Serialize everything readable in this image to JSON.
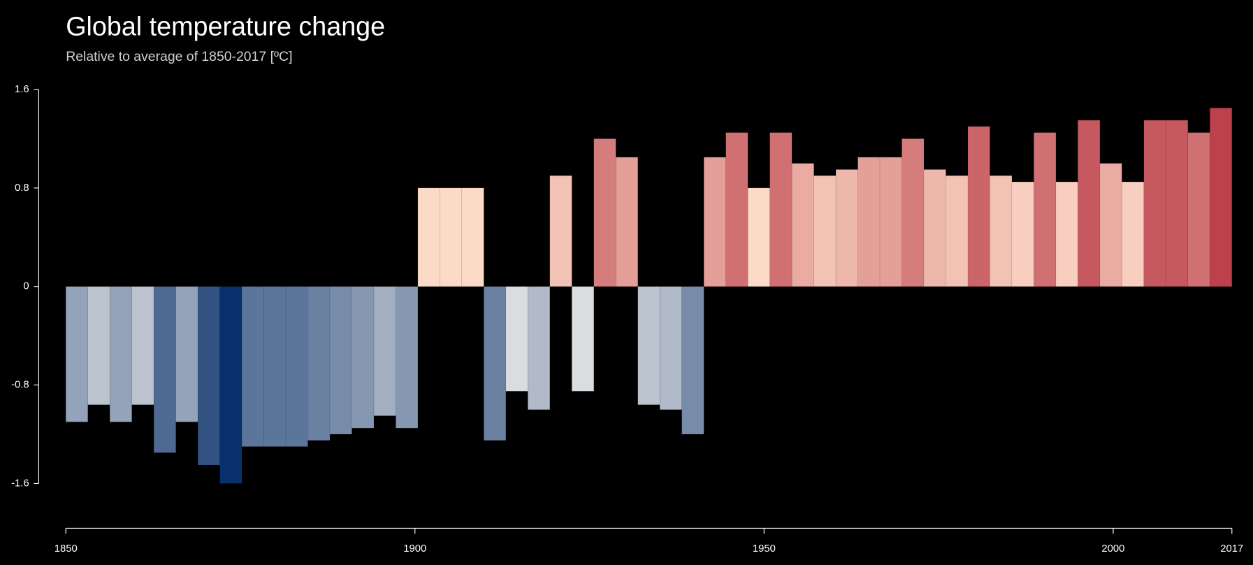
{
  "chart_data": {
    "type": "bar",
    "title": "Global temperature change",
    "subtitle": "Relative to average of 1850-2017 [ºC]",
    "values": [
      -1.1,
      -0.96,
      -1.1,
      -0.96,
      -1.35,
      -1.1,
      -1.45,
      -1.6,
      -1.3,
      -1.3,
      -1.3,
      -1.25,
      -1.2,
      -1.15,
      -1.05,
      -1.15,
      0.8,
      0.8,
      0.8,
      -1.25,
      -0.85,
      -1.0,
      0.9,
      -0.85,
      1.2,
      1.05,
      -0.96,
      -1.0,
      -1.2,
      1.05,
      1.25,
      0.8,
      1.25,
      1.0,
      0.9,
      0.95,
      1.05,
      1.05,
      1.2,
      0.95,
      0.9,
      1.3,
      0.9,
      0.85,
      1.25,
      0.85,
      1.35,
      1.0,
      0.85,
      1.35,
      1.35,
      1.25,
      1.45
    ],
    "xlim": [
      1850,
      2017
    ],
    "xticks": [
      1850,
      1900,
      1950,
      2000,
      2017
    ],
    "ylim": [
      -1.6,
      1.6
    ],
    "yticks": [
      -1.6,
      -0.8,
      0,
      0.8,
      1.6
    ],
    "colorscale": {
      "domain": [
        -1.6,
        -0.8,
        0.8,
        1.6
      ],
      "colors": [
        "#08306b",
        "#e8e8e8",
        "#fcdac8",
        "#ae1e30"
      ]
    }
  }
}
